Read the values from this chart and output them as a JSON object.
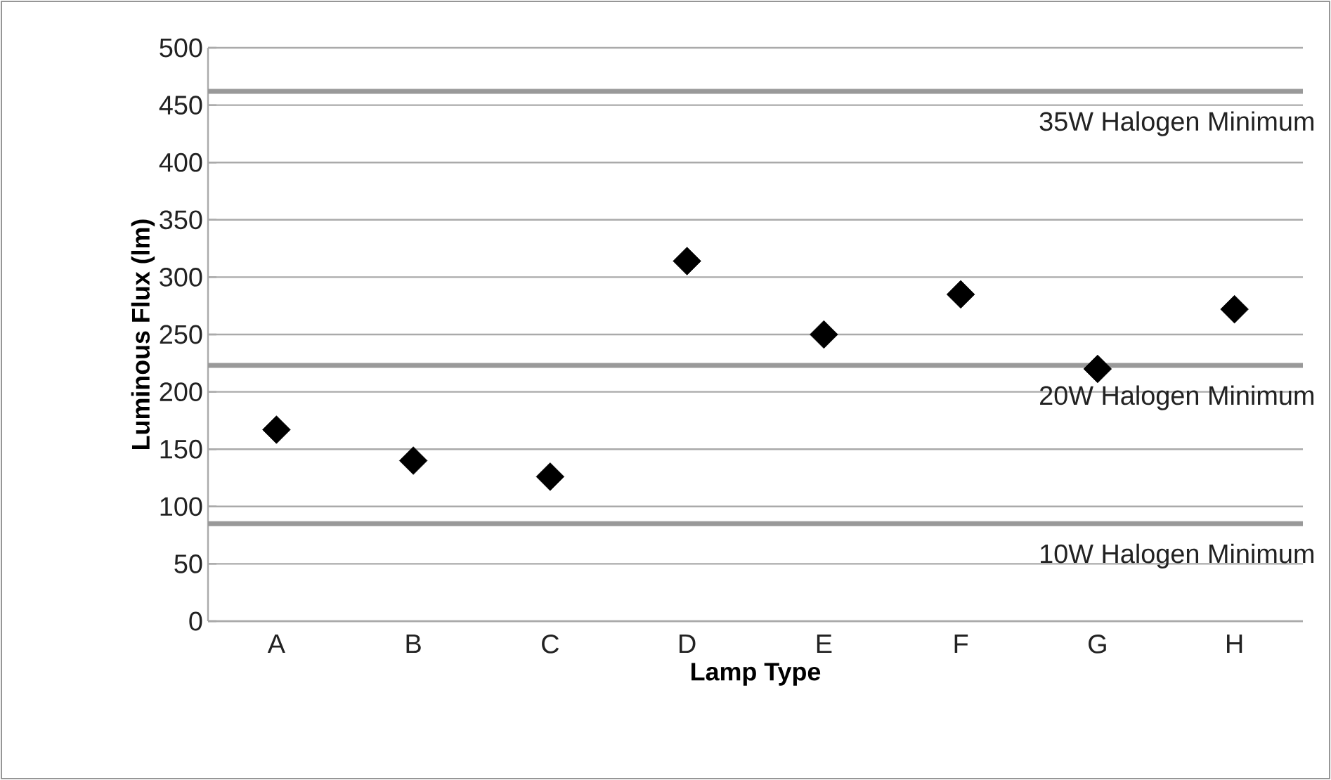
{
  "chart_data": {
    "type": "scatter",
    "xlabel": "Lamp Type",
    "ylabel": "Luminous Flux (lm)",
    "categories": [
      "A",
      "B",
      "C",
      "D",
      "E",
      "F",
      "G",
      "H"
    ],
    "series": [
      {
        "color": "#000000",
        "values": [
          167,
          140,
          126,
          314,
          250,
          285,
          220,
          272
        ]
      }
    ],
    "marker": "diamond",
    "ylim": [
      0,
      500
    ],
    "yticks": [
      0,
      50,
      100,
      150,
      200,
      250,
      300,
      350,
      400,
      450,
      500
    ],
    "grid": "y",
    "ref_lines": [
      {
        "axis": "y",
        "value": 462,
        "label": "35W Halogen Minimum",
        "color": "#999999"
      },
      {
        "axis": "y",
        "value": 223,
        "label": "20W Halogen Minimum",
        "color": "#999999"
      },
      {
        "axis": "y",
        "value": 85,
        "label": "10W Halogen Minimum",
        "color": "#999999"
      }
    ]
  }
}
